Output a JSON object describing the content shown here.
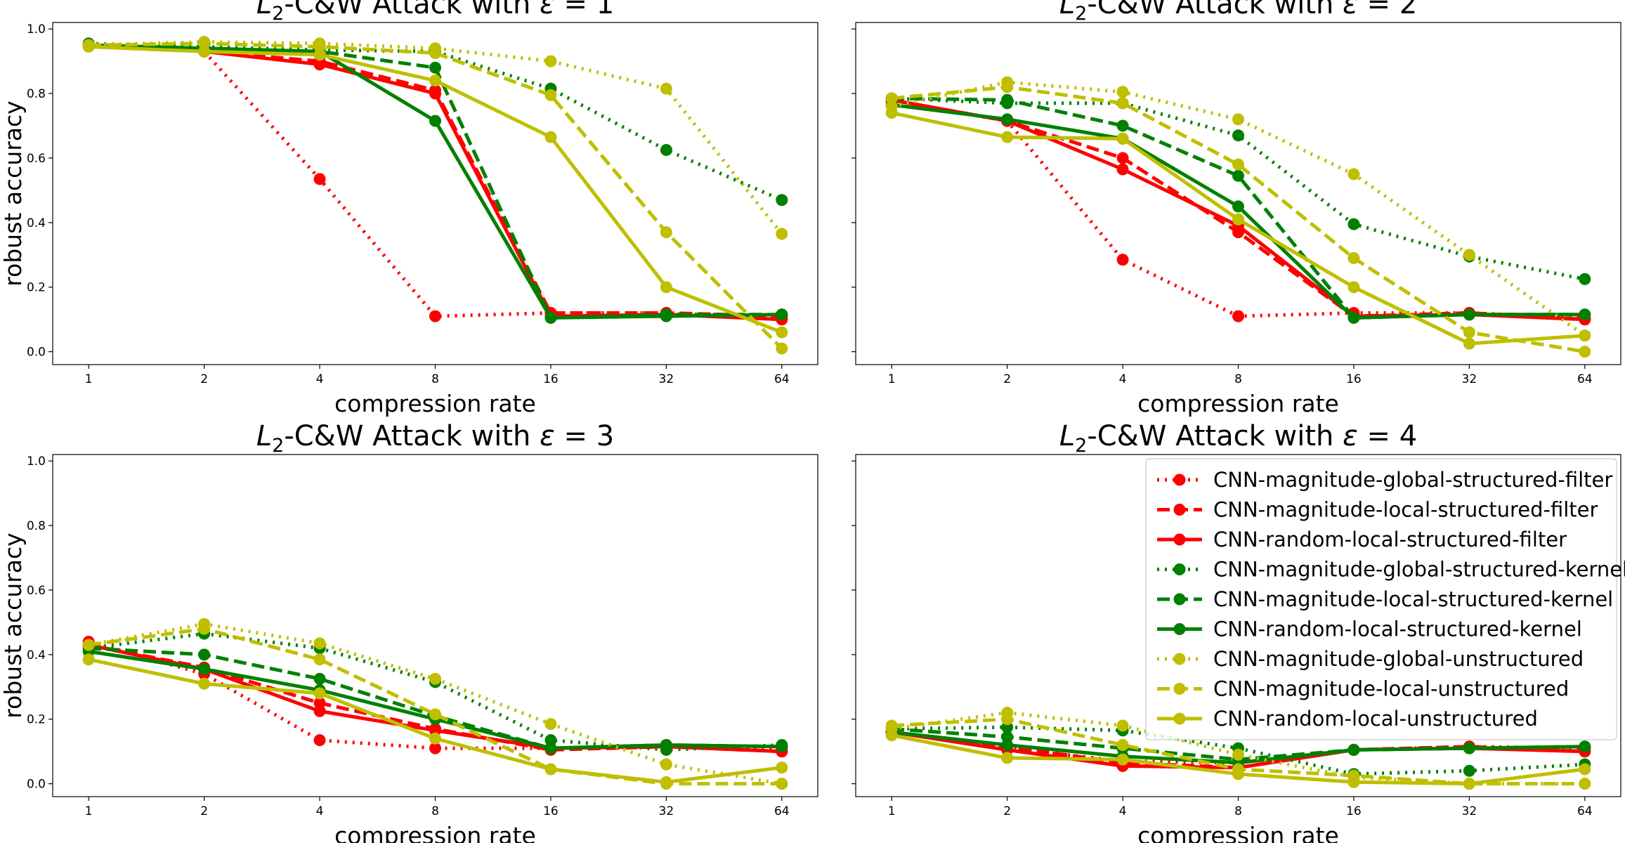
{
  "figure": {
    "layout": "2x2 grid of subplots",
    "shared_y_axis_per_row": true
  },
  "chart_data": [
    {
      "type": "line",
      "title_prefix": "L",
      "title_subscript": "2",
      "title_main": "-C&W Attack with ",
      "title_epsilon": "ε",
      "title_eq": " = 1",
      "xlabel": "compression rate",
      "ylabel": "robust accuracy",
      "x": [
        1,
        2,
        4,
        8,
        16,
        32,
        64
      ],
      "x_tick_labels": [
        "1",
        "2",
        "4",
        "8",
        "16",
        "32",
        "64"
      ],
      "x_scale": "log2",
      "ylim": [
        -0.04,
        1.02
      ],
      "y_ticks": [
        0.0,
        0.2,
        0.4,
        0.6,
        0.8,
        1.0
      ],
      "y_tick_labels": [
        "0.0",
        "0.2",
        "0.4",
        "0.6",
        "0.8",
        "1.0"
      ],
      "series": [
        {
          "values": [
            0.95,
            0.93,
            0.535,
            0.11,
            0.12,
            0.12,
            0.1
          ]
        },
        {
          "values": [
            0.95,
            0.93,
            0.9,
            0.81,
            0.12,
            0.12,
            0.11
          ]
        },
        {
          "values": [
            0.95,
            0.93,
            0.89,
            0.8,
            0.11,
            0.115,
            0.1
          ]
        },
        {
          "values": [
            0.955,
            0.945,
            0.935,
            0.93,
            0.815,
            0.625,
            0.47
          ]
        },
        {
          "values": [
            0.95,
            0.94,
            0.93,
            0.88,
            0.105,
            0.115,
            0.115
          ]
        },
        {
          "values": [
            0.95,
            0.94,
            0.93,
            0.715,
            0.105,
            0.11,
            0.115
          ]
        },
        {
          "values": [
            0.95,
            0.96,
            0.955,
            0.94,
            0.9,
            0.815,
            0.365
          ]
        },
        {
          "values": [
            0.95,
            0.955,
            0.945,
            0.925,
            0.795,
            0.37,
            0.01
          ]
        },
        {
          "values": [
            0.945,
            0.93,
            0.92,
            0.84,
            0.665,
            0.2,
            0.06
          ]
        }
      ]
    },
    {
      "type": "line",
      "title_prefix": "L",
      "title_subscript": "2",
      "title_main": "-C&W Attack with ",
      "title_epsilon": "ε",
      "title_eq": " = 2",
      "xlabel": "compression rate",
      "ylabel": "",
      "x": [
        1,
        2,
        4,
        8,
        16,
        32,
        64
      ],
      "x_tick_labels": [
        "1",
        "2",
        "4",
        "8",
        "16",
        "32",
        "64"
      ],
      "x_scale": "log2",
      "ylim": [
        -0.04,
        1.02
      ],
      "y_ticks": [
        0.0,
        0.2,
        0.4,
        0.6,
        0.8,
        1.0
      ],
      "y_tick_labels": [],
      "series": [
        {
          "values": [
            0.775,
            0.715,
            0.285,
            0.11,
            0.12,
            0.12,
            0.105
          ]
        },
        {
          "values": [
            0.78,
            0.715,
            0.6,
            0.37,
            0.11,
            0.12,
            0.1
          ]
        },
        {
          "values": [
            0.78,
            0.715,
            0.565,
            0.39,
            0.11,
            0.115,
            0.1
          ]
        },
        {
          "values": [
            0.785,
            0.77,
            0.77,
            0.67,
            0.395,
            0.295,
            0.225
          ]
        },
        {
          "values": [
            0.785,
            0.78,
            0.7,
            0.545,
            0.105,
            0.115,
            0.115
          ]
        },
        {
          "values": [
            0.765,
            0.72,
            0.66,
            0.45,
            0.105,
            0.115,
            0.115
          ]
        },
        {
          "values": [
            0.76,
            0.835,
            0.805,
            0.72,
            0.55,
            0.3,
            0.05
          ]
        },
        {
          "values": [
            0.785,
            0.82,
            0.77,
            0.58,
            0.29,
            0.06,
            0.0
          ]
        },
        {
          "values": [
            0.74,
            0.665,
            0.66,
            0.41,
            0.2,
            0.025,
            0.05
          ]
        }
      ]
    },
    {
      "type": "line",
      "title_prefix": "L",
      "title_subscript": "2",
      "title_main": "-C&W Attack with ",
      "title_epsilon": "ε",
      "title_eq": " = 3",
      "xlabel": "compression rate",
      "ylabel": "robust accuracy",
      "x": [
        1,
        2,
        4,
        8,
        16,
        32,
        64
      ],
      "x_tick_labels": [
        "1",
        "2",
        "4",
        "8",
        "16",
        "32",
        "64"
      ],
      "x_scale": "log2",
      "ylim": [
        -0.04,
        1.02
      ],
      "y_ticks": [
        0.0,
        0.2,
        0.4,
        0.6,
        0.8,
        1.0
      ],
      "y_tick_labels": [
        "0.0",
        "0.2",
        "0.4",
        "0.6",
        "0.8",
        "1.0"
      ],
      "series": [
        {
          "values": [
            0.44,
            0.34,
            0.135,
            0.11,
            0.11,
            0.12,
            0.11
          ]
        },
        {
          "values": [
            0.43,
            0.36,
            0.25,
            0.17,
            0.105,
            0.115,
            0.1
          ]
        },
        {
          "values": [
            0.43,
            0.355,
            0.225,
            0.165,
            0.11,
            0.115,
            0.1
          ]
        },
        {
          "values": [
            0.42,
            0.465,
            0.42,
            0.315,
            0.135,
            0.105,
            0.12
          ]
        },
        {
          "values": [
            0.42,
            0.4,
            0.325,
            0.21,
            0.11,
            0.12,
            0.115
          ]
        },
        {
          "values": [
            0.41,
            0.355,
            0.29,
            0.2,
            0.11,
            0.12,
            0.115
          ]
        },
        {
          "values": [
            0.43,
            0.495,
            0.435,
            0.325,
            0.185,
            0.06,
            0.0
          ]
        },
        {
          "values": [
            0.43,
            0.48,
            0.385,
            0.215,
            0.045,
            0.0,
            0.0
          ]
        },
        {
          "values": [
            0.385,
            0.31,
            0.28,
            0.14,
            0.045,
            0.005,
            0.05
          ]
        }
      ]
    },
    {
      "type": "line",
      "title_prefix": "L",
      "title_subscript": "2",
      "title_main": "-C&W Attack with ",
      "title_epsilon": "ε",
      "title_eq": " = 4",
      "xlabel": "compression rate",
      "ylabel": "",
      "x": [
        1,
        2,
        4,
        8,
        16,
        32,
        64
      ],
      "x_tick_labels": [
        "1",
        "2",
        "4",
        "8",
        "16",
        "32",
        "64"
      ],
      "x_scale": "log2",
      "ylim": [
        -0.04,
        1.02
      ],
      "y_ticks": [
        0.0,
        0.2,
        0.4,
        0.6,
        0.8,
        1.0
      ],
      "y_tick_labels": [],
      "legend_position": "upper-right",
      "series": [
        {
          "values": [
            0.16,
            0.11,
            0.07,
            0.065,
            0.105,
            0.115,
            0.11
          ]
        },
        {
          "values": [
            0.16,
            0.115,
            0.065,
            0.05,
            0.105,
            0.115,
            0.1
          ]
        },
        {
          "values": [
            0.16,
            0.105,
            0.055,
            0.05,
            0.105,
            0.11,
            0.1
          ]
        },
        {
          "values": [
            0.17,
            0.175,
            0.165,
            0.11,
            0.03,
            0.04,
            0.06
          ]
        },
        {
          "values": [
            0.17,
            0.145,
            0.11,
            0.075,
            0.105,
            0.11,
            0.115
          ]
        },
        {
          "values": [
            0.16,
            0.12,
            0.085,
            0.065,
            0.105,
            0.11,
            0.115
          ]
        },
        {
          "values": [
            0.17,
            0.22,
            0.18,
            0.09,
            0.02,
            0.0,
            0.0
          ]
        },
        {
          "values": [
            0.18,
            0.2,
            0.12,
            0.045,
            0.025,
            0.0,
            0.0
          ]
        },
        {
          "values": [
            0.15,
            0.08,
            0.075,
            0.03,
            0.005,
            0.0,
            0.045
          ]
        }
      ]
    }
  ],
  "legend": {
    "entries": [
      {
        "label": "CNN-magnitude-global-structured-filter",
        "color": "#ff0000",
        "style": "dotted"
      },
      {
        "label": "CNN-magnitude-local-structured-filter",
        "color": "#ff0000",
        "style": "dashed"
      },
      {
        "label": "CNN-random-local-structured-filter",
        "color": "#ff0000",
        "style": "solid"
      },
      {
        "label": "CNN-magnitude-global-structured-kernel",
        "color": "#008000",
        "style": "dotted"
      },
      {
        "label": "CNN-magnitude-local-structured-kernel",
        "color": "#008000",
        "style": "dashed"
      },
      {
        "label": "CNN-random-local-structured-kernel",
        "color": "#008000",
        "style": "solid"
      },
      {
        "label": "CNN-magnitude-global-unstructured",
        "color": "#bfbf00",
        "style": "dotted"
      },
      {
        "label": "CNN-magnitude-local-unstructured",
        "color": "#bfbf00",
        "style": "dashed"
      },
      {
        "label": "CNN-random-local-unstructured",
        "color": "#bfbf00",
        "style": "solid"
      }
    ]
  }
}
